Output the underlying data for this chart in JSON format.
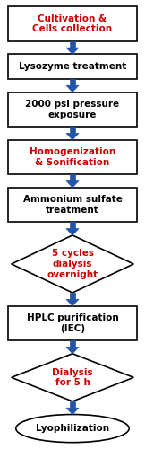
{
  "steps": [
    {
      "text": "Cultivation &\nCells collection",
      "shape": "rect",
      "text_color": "#cc0000",
      "border_color": "#000000",
      "bold": true
    },
    {
      "text": "Lysozyme treatment",
      "shape": "rect",
      "text_color": "#000000",
      "border_color": "#000000",
      "bold": true
    },
    {
      "text": "2000 psi pressure\nexposure",
      "shape": "rect",
      "text_color": "#000000",
      "border_color": "#000000",
      "bold": true
    },
    {
      "text": "Homogenization\n& Sonification",
      "shape": "rect",
      "text_color": "#cc0000",
      "border_color": "#000000",
      "bold": true
    },
    {
      "text": "Ammonium sulfate\ntreatment",
      "shape": "rect",
      "text_color": "#000000",
      "border_color": "#000000",
      "bold": true
    },
    {
      "text": "5 cycles\ndialysis\novernight",
      "shape": "diamond",
      "text_color": "#cc0000",
      "border_color": "#000000",
      "bold": true
    },
    {
      "text": "HPLC purification\n(IEC)",
      "shape": "rect",
      "text_color": "#000000",
      "border_color": "#000000",
      "bold": true
    },
    {
      "text": "Dialysis\nfor 5 h",
      "shape": "diamond",
      "text_color": "#cc0000",
      "border_color": "#000000",
      "bold": true
    },
    {
      "text": "Lyophilization",
      "shape": "ellipse",
      "text_color": "#000000",
      "border_color": "#000000",
      "bold": true
    }
  ],
  "arrow_color": "#2255aa",
  "bg_color": "#ffffff",
  "font_size": 7.5
}
